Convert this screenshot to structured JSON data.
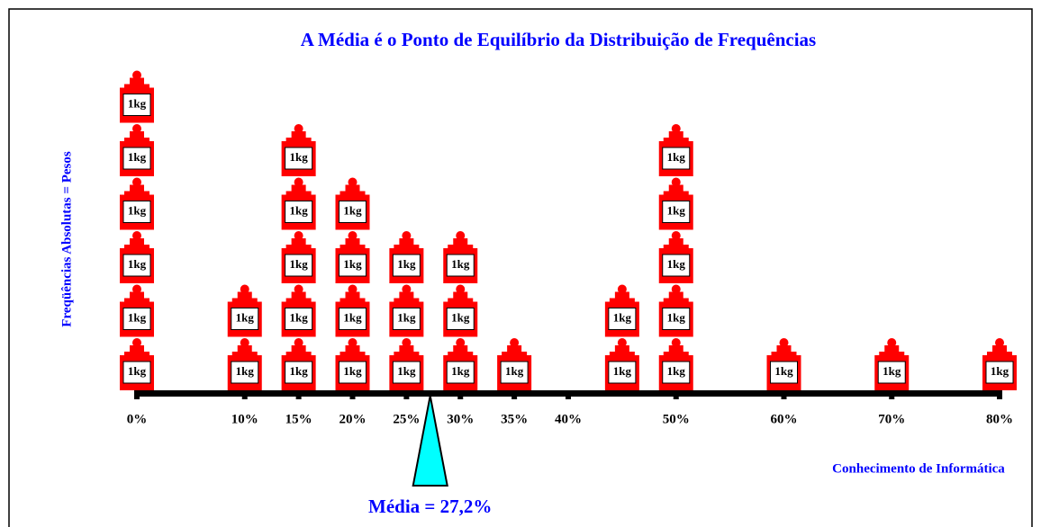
{
  "chart_data": {
    "type": "weights",
    "title": "A Média é o Ponto de Equilíbrio da Distribuição de Frequências",
    "y_label": "Freqüências Absolutas = Pesos",
    "x_label": "Conhecimento de Informática",
    "weight_label": "1kg",
    "x": [
      0,
      10,
      15,
      20,
      25,
      30,
      35,
      45,
      50,
      60,
      70,
      80
    ],
    "values": [
      6,
      2,
      5,
      4,
      3,
      3,
      1,
      2,
      5,
      1,
      1,
      1
    ],
    "color": "#ff0000",
    "xlim": [
      0,
      80
    ],
    "xticks": [
      {
        "value": 0,
        "label": "0%"
      },
      {
        "value": 10,
        "label": "10%"
      },
      {
        "value": 15,
        "label": "15%"
      },
      {
        "value": 20,
        "label": "20%"
      },
      {
        "value": 25,
        "label": "25%"
      },
      {
        "value": 30,
        "label": "30%"
      },
      {
        "value": 35,
        "label": "35%"
      },
      {
        "value": 40,
        "label": "40%"
      },
      {
        "value": 50,
        "label": "50%"
      },
      {
        "value": 60,
        "label": "60%"
      },
      {
        "value": 70,
        "label": "70%"
      },
      {
        "value": 80,
        "label": "80%"
      }
    ],
    "mean": {
      "value": 27.2,
      "label": "Média = 27,2%"
    },
    "fulcrum_color": "#00ffff"
  }
}
